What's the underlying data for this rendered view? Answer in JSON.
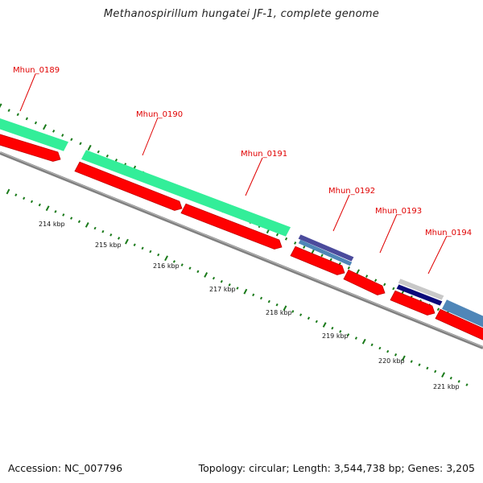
{
  "map": {
    "title": "Methanospirillum hungatei JF-1, complete genome",
    "accession": "Accession: NC_007796",
    "summary": "Topology: circular; Length: 3,544,738 bp; Genes: 3,205"
  },
  "colors": {
    "cds": "#ff0000",
    "cds_dark": "#c00000",
    "backbone": "#808080",
    "gene_label": "#e00000",
    "tick": "#1a7a1a",
    "feature_green": "#33ee99",
    "feature_blue": "#4f86b8",
    "feature_purple": "#4b4b9c",
    "feature_navy": "#0a0a7a",
    "feature_gray": "#c8c8c8"
  },
  "genes": [
    "Mhun_0189",
    "Mhun_0190",
    "Mhun_0191",
    "Mhun_0192",
    "Mhun_0193",
    "Mhun_0194"
  ],
  "kbp_labels": [
    "214 kbp",
    "215 kbp",
    "216 kbp",
    "217 kbp",
    "218 kbp",
    "219 kbp",
    "220 kbp",
    "221 kbp"
  ]
}
